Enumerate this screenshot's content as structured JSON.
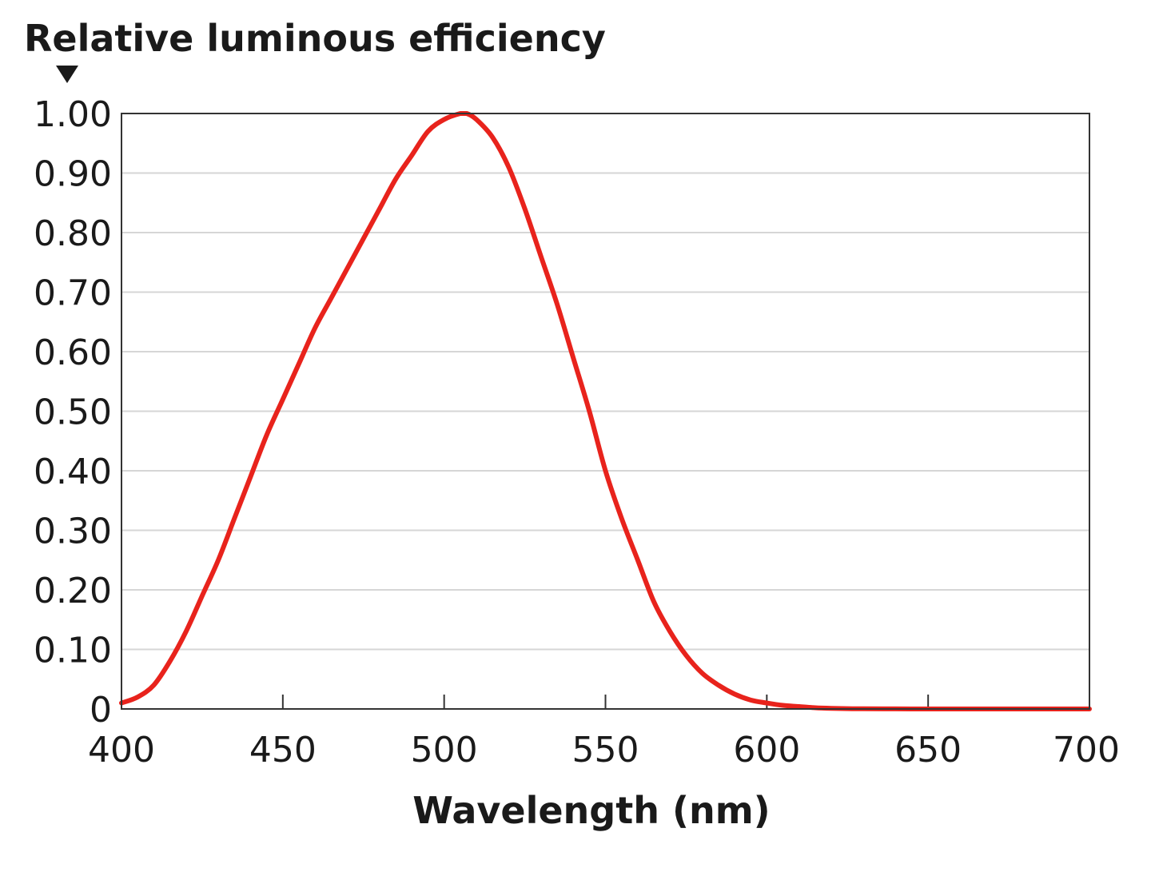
{
  "chart_data": {
    "type": "line",
    "title": "",
    "ylabel": "Relative luminous efficiency",
    "xlabel": "Wavelength (nm)",
    "xlim": [
      400,
      700
    ],
    "ylim": [
      0,
      1.0
    ],
    "x_ticks": [
      400,
      450,
      500,
      550,
      600,
      650,
      700
    ],
    "x_tick_labels": [
      "400",
      "450",
      "500",
      "550",
      "600",
      "650",
      "700"
    ],
    "y_ticks": [
      0,
      0.1,
      0.2,
      0.3,
      0.4,
      0.5,
      0.6,
      0.7,
      0.8,
      0.9,
      1.0
    ],
    "y_tick_labels": [
      "0",
      "0.10",
      "0.20",
      "0.30",
      "0.40",
      "0.50",
      "0.60",
      "0.70",
      "0.80",
      "0.90",
      "1.00"
    ],
    "grid": true,
    "legend": "none",
    "series": [
      {
        "name": "Relative luminous efficiency",
        "color": "#e8231c",
        "x": [
          400,
          405,
          410,
          415,
          420,
          425,
          430,
          435,
          440,
          445,
          450,
          455,
          460,
          465,
          470,
          475,
          480,
          485,
          490,
          495,
          500,
          505,
          507,
          510,
          515,
          520,
          525,
          530,
          535,
          540,
          545,
          550,
          555,
          560,
          565,
          570,
          575,
          580,
          585,
          590,
          595,
          600,
          605,
          610,
          615,
          620,
          625,
          630,
          640,
          650,
          660,
          670,
          680,
          690,
          700
        ],
        "y": [
          0.01,
          0.02,
          0.04,
          0.08,
          0.13,
          0.19,
          0.25,
          0.32,
          0.39,
          0.46,
          0.52,
          0.58,
          0.64,
          0.69,
          0.74,
          0.79,
          0.84,
          0.89,
          0.93,
          0.97,
          0.99,
          1.0,
          1.0,
          0.99,
          0.96,
          0.91,
          0.84,
          0.76,
          0.68,
          0.59,
          0.5,
          0.4,
          0.32,
          0.25,
          0.18,
          0.13,
          0.09,
          0.06,
          0.04,
          0.025,
          0.015,
          0.01,
          0.006,
          0.004,
          0.002,
          0.001,
          0.0005,
          0.0003,
          0.0001,
          0.0,
          0.0,
          0.0,
          0.0,
          0.0,
          0.0
        ]
      }
    ],
    "axis_marker_icon": "down-triangle-icon"
  }
}
